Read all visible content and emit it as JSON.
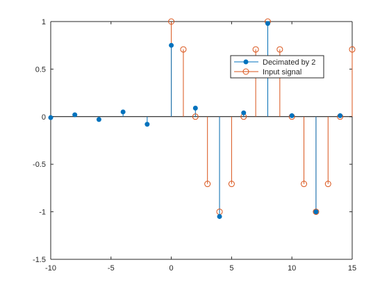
{
  "chart_data": {
    "type": "stem",
    "xlim": [
      -10,
      15
    ],
    "ylim": [
      -1.5,
      1
    ],
    "x_ticks": [
      -10,
      -5,
      0,
      5,
      10,
      15
    ],
    "x_tick_labels": [
      "-10",
      "-5",
      "0",
      "5",
      "10",
      "15"
    ],
    "y_ticks": [
      -1.5,
      -1,
      -0.5,
      0,
      0.5,
      1
    ],
    "y_tick_labels": [
      "-1.5",
      "-1",
      "-0.5",
      "0",
      "0.5",
      "1"
    ],
    "grid": false,
    "legend_position": "upper-right",
    "series": [
      {
        "name": "Decimated by 2",
        "color": "#0072BD",
        "marker": "filled-circle",
        "x": [
          -10,
          -8,
          -6,
          -4,
          -2,
          0,
          2,
          4,
          6,
          8,
          10,
          12,
          14
        ],
        "y": [
          -0.01,
          0.02,
          -0.03,
          0.05,
          -0.08,
          0.75,
          0.09,
          -1.05,
          0.04,
          0.98,
          0.01,
          -1.0,
          0.01
        ]
      },
      {
        "name": "Input signal",
        "color": "#D95319",
        "marker": "open-circle",
        "x": [
          0,
          1,
          2,
          3,
          4,
          5,
          6,
          7,
          8,
          9,
          10,
          11,
          12,
          13,
          14,
          15
        ],
        "y": [
          1,
          0.707,
          0,
          -0.707,
          -1,
          -0.707,
          0,
          0.707,
          1,
          0.707,
          0,
          -0.707,
          -1,
          -0.707,
          0,
          0.707
        ]
      }
    ]
  }
}
